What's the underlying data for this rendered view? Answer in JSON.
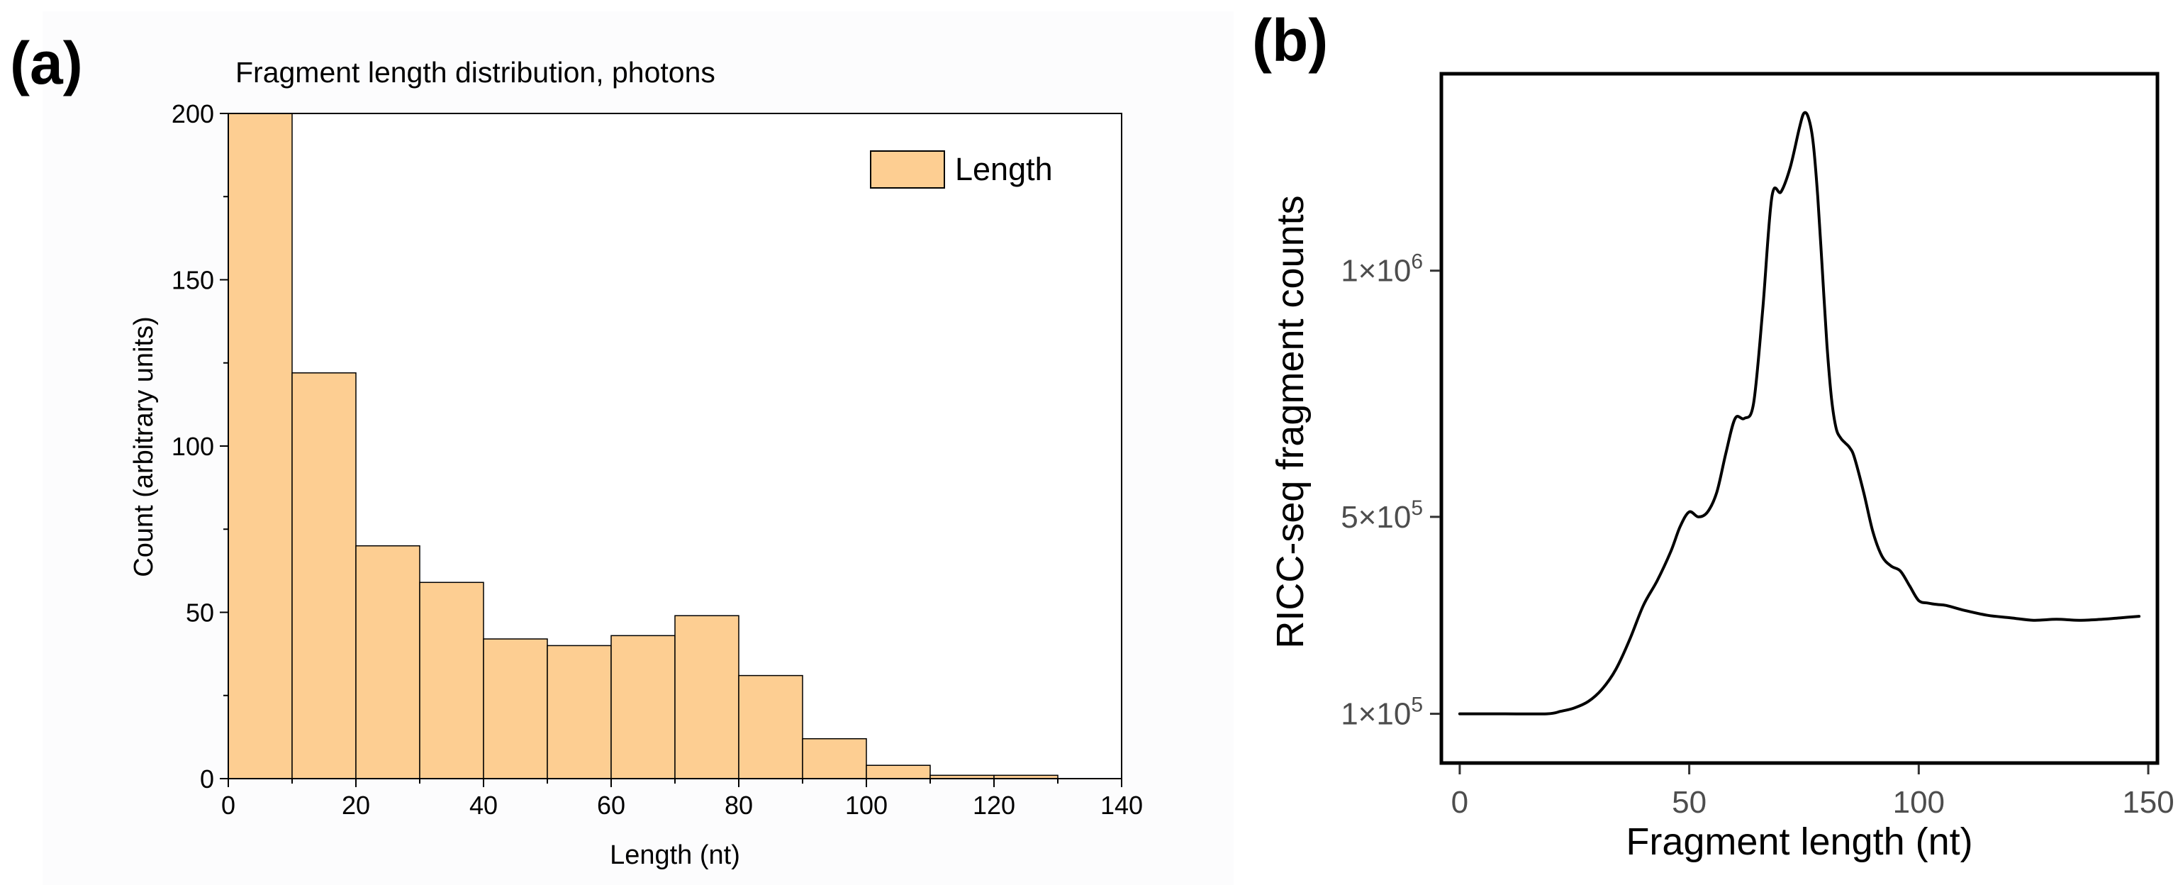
{
  "panel_a_label": "(a)",
  "panel_b_label": "(b)",
  "chart_data": [
    {
      "type": "bar",
      "title": "Fragment length distribution, photons",
      "xlabel": "Length (nt)",
      "ylabel": "Count (arbitrary units)",
      "xlim": [
        0,
        140
      ],
      "ylim": [
        0,
        200
      ],
      "xticks": [
        0,
        20,
        40,
        60,
        80,
        100,
        120,
        140
      ],
      "yticks": [
        0,
        50,
        100,
        150,
        200
      ],
      "legend": [
        "Length"
      ],
      "legend_position": "top-right",
      "bar_color": "#FDCE92",
      "bins": [
        {
          "start": 0,
          "end": 10,
          "value": 200
        },
        {
          "start": 10,
          "end": 20,
          "value": 122
        },
        {
          "start": 20,
          "end": 30,
          "value": 70
        },
        {
          "start": 30,
          "end": 40,
          "value": 59
        },
        {
          "start": 40,
          "end": 50,
          "value": 42
        },
        {
          "start": 50,
          "end": 60,
          "value": 40
        },
        {
          "start": 60,
          "end": 70,
          "value": 43
        },
        {
          "start": 70,
          "end": 80,
          "value": 49
        },
        {
          "start": 80,
          "end": 90,
          "value": 31
        },
        {
          "start": 90,
          "end": 100,
          "value": 12
        },
        {
          "start": 100,
          "end": 110,
          "value": 4
        },
        {
          "start": 110,
          "end": 120,
          "value": 1
        },
        {
          "start": 120,
          "end": 130,
          "value": 1
        }
      ]
    },
    {
      "type": "line",
      "title": "",
      "xlabel": "Fragment length (nt)",
      "ylabel": "RICC-seq fragment counts",
      "xlim": [
        -4,
        152
      ],
      "ylim": [
        0,
        1400000
      ],
      "xticks": [
        0,
        50,
        100,
        150
      ],
      "xtick_labels": [
        "0",
        "50",
        "100",
        "150"
      ],
      "yticks": [
        100000,
        500000,
        1000000
      ],
      "ytick_labels": [
        {
          "base": "1×10",
          "exp": "5"
        },
        {
          "base": "5×10",
          "exp": "5"
        },
        {
          "base": "1×10",
          "exp": "6"
        }
      ],
      "line_color": "#000000",
      "series": [
        {
          "name": "counts",
          "x": [
            0,
            10,
            19,
            22,
            25,
            28,
            31,
            34,
            37,
            40,
            43,
            46,
            48,
            50,
            52,
            54,
            56,
            58,
            60,
            62,
            64,
            66,
            68,
            70,
            72,
            74,
            75,
            76,
            77,
            78,
            79,
            80,
            81,
            82,
            83,
            84,
            85,
            86,
            88,
            90,
            92,
            94,
            96,
            98,
            100,
            102,
            104,
            106,
            110,
            115,
            120,
            125,
            130,
            135,
            140,
            144,
            148
          ],
          "y": [
            100000,
            100000,
            100000,
            105000,
            112000,
            125000,
            150000,
            190000,
            250000,
            320000,
            370000,
            430000,
            480000,
            510000,
            500000,
            510000,
            550000,
            630000,
            700000,
            700000,
            730000,
            920000,
            1150000,
            1160000,
            1210000,
            1290000,
            1320000,
            1310000,
            1260000,
            1150000,
            1000000,
            850000,
            740000,
            680000,
            660000,
            650000,
            640000,
            620000,
            550000,
            470000,
            420000,
            400000,
            390000,
            360000,
            330000,
            325000,
            322000,
            320000,
            310000,
            300000,
            295000,
            290000,
            292000,
            290000,
            292000,
            295000,
            298000
          ]
        }
      ]
    }
  ]
}
